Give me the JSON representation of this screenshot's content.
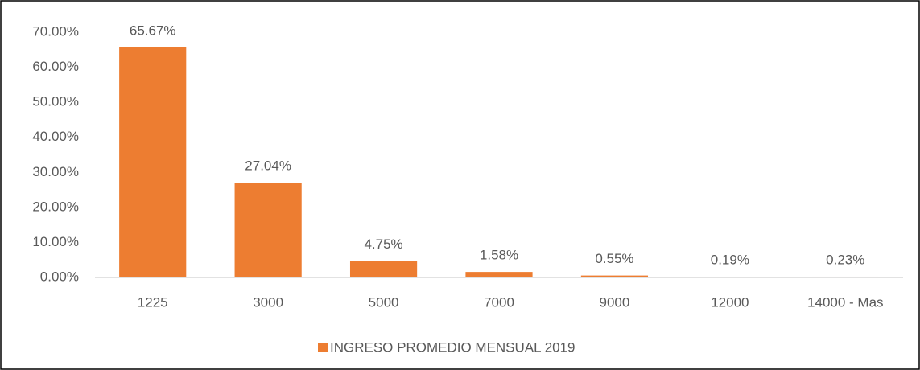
{
  "chart_data": {
    "type": "bar",
    "categories": [
      "1225",
      "3000",
      "5000",
      "7000",
      "9000",
      "12000",
      "14000 - Mas"
    ],
    "series": [
      {
        "name": "INGRESO PROMEDIO MENSUAL 2019",
        "color": "#ed7d31",
        "values": [
          65.67,
          27.04,
          4.75,
          1.58,
          0.55,
          0.19,
          0.23
        ],
        "value_labels": [
          "65.67%",
          "27.04%",
          "4.75%",
          "1.58%",
          "0.55%",
          "0.19%",
          "0.23%"
        ]
      }
    ],
    "ylim": [
      0,
      70
    ],
    "yticks": [
      {
        "value": 0,
        "label": "0.00%"
      },
      {
        "value": 10,
        "label": "10.00%"
      },
      {
        "value": 20,
        "label": "20.00%"
      },
      {
        "value": 30,
        "label": "30.00%"
      },
      {
        "value": 40,
        "label": "40.00%"
      },
      {
        "value": 50,
        "label": "50.00%"
      },
      {
        "value": 60,
        "label": "60.00%"
      },
      {
        "value": 70,
        "label": "70.00%"
      }
    ],
    "grid": false,
    "legend": "bottom"
  }
}
